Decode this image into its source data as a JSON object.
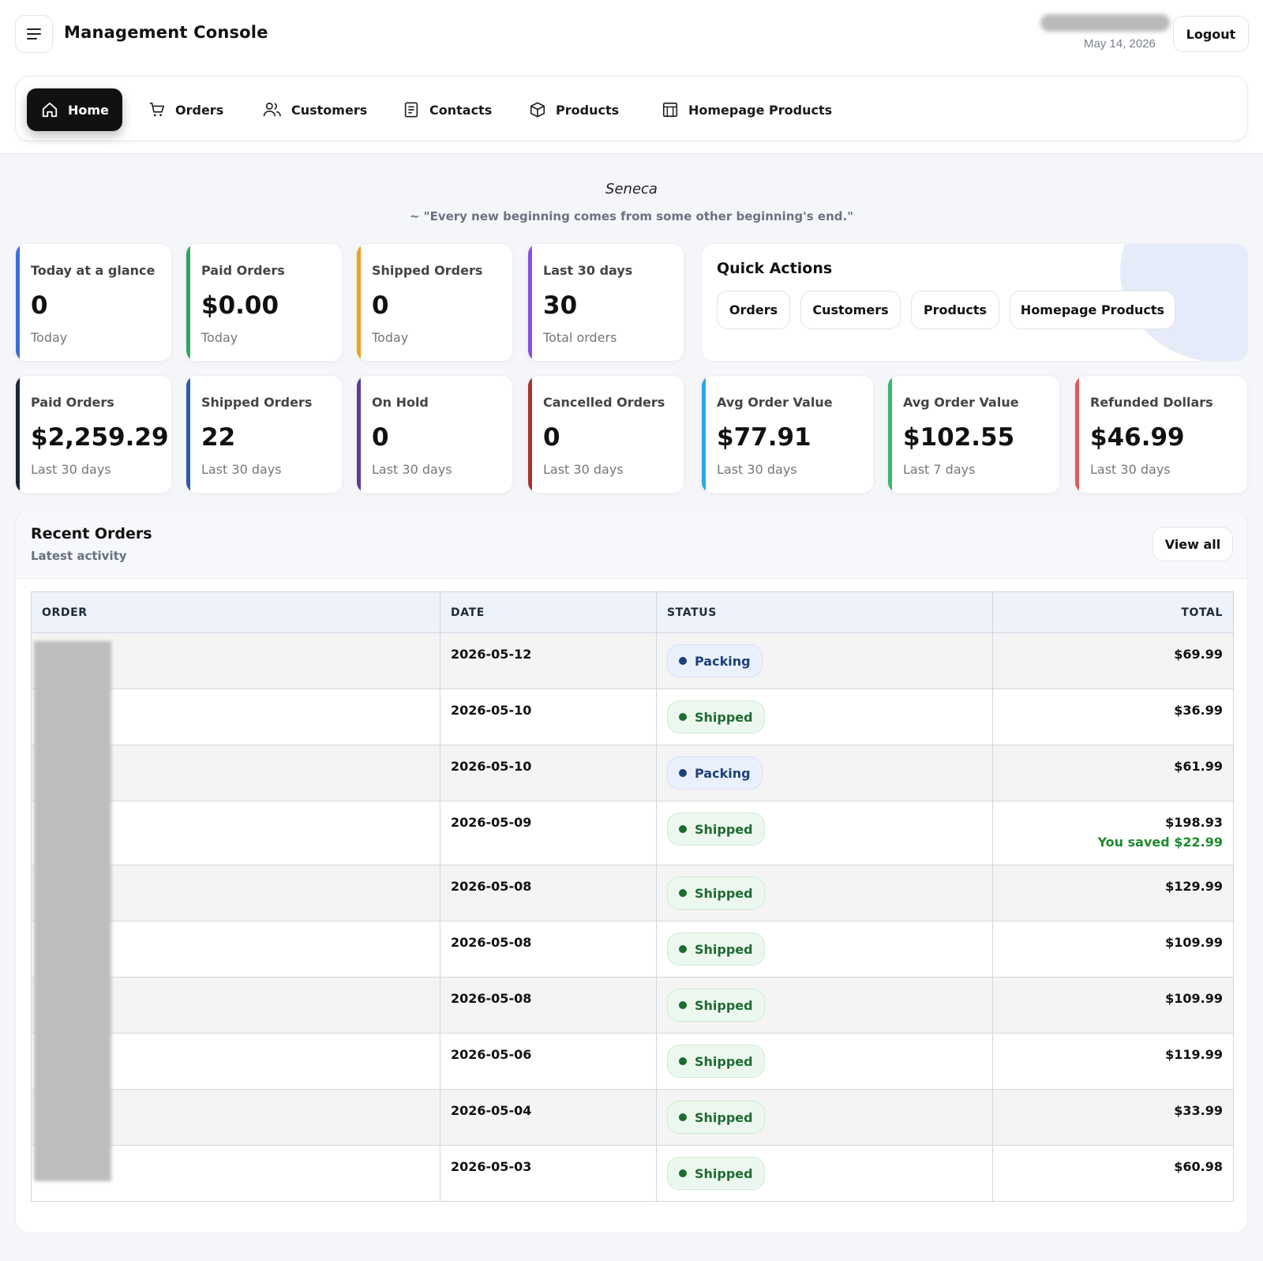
{
  "header": {
    "title": "Management Console",
    "date": "May 14, 2026",
    "logout_label": "Logout"
  },
  "nav": {
    "items": [
      {
        "label": "Home",
        "icon": "home-icon",
        "active": true
      },
      {
        "label": "Orders",
        "icon": "cart-icon"
      },
      {
        "label": "Customers",
        "icon": "users-icon"
      },
      {
        "label": "Contacts",
        "icon": "contacts-icon"
      },
      {
        "label": "Products",
        "icon": "box-icon"
      },
      {
        "label": "Homepage Products",
        "icon": "storefront-icon"
      }
    ]
  },
  "quote": {
    "author": "Seneca",
    "text": "~ \"Every new beginning comes from some other beginning's end.\""
  },
  "top_stats": [
    {
      "label": "Today at a glance",
      "value": "0",
      "sub": "Today",
      "accent": "#3b6fd8"
    },
    {
      "label": "Paid Orders",
      "value": "$0.00",
      "sub": "Today",
      "accent": "#2fa65a"
    },
    {
      "label": "Shipped Orders",
      "value": "0",
      "sub": "Today",
      "accent": "#f0a020"
    },
    {
      "label": "Last 30 days",
      "value": "30",
      "sub": "Total orders",
      "accent": "#8a4fe0"
    }
  ],
  "quick_actions": {
    "title": "Quick Actions",
    "buttons": [
      "Orders",
      "Customers",
      "Products",
      "Homepage Products"
    ]
  },
  "stats": [
    {
      "label": "Paid Orders",
      "value": "$2,259.29",
      "sub": "Last 30 days",
      "accent": "#1e2633"
    },
    {
      "label": "Shipped Orders",
      "value": "22",
      "sub": "Last 30 days",
      "accent": "#2b5caa"
    },
    {
      "label": "On Hold",
      "value": "0",
      "sub": "Last 30 days",
      "accent": "#5b3aa0"
    },
    {
      "label": "Cancelled Orders",
      "value": "0",
      "sub": "Last 30 days",
      "accent": "#a8322e"
    },
    {
      "label": "Avg Order Value",
      "value": "$77.91",
      "sub": "Last 30 days",
      "accent": "#2aa8e6"
    },
    {
      "label": "Avg Order Value",
      "value": "$102.55",
      "sub": "Last 7 days",
      "accent": "#36b86a"
    },
    {
      "label": "Refunded Dollars",
      "value": "$46.99",
      "sub": "Last 30 days",
      "accent": "#e05a5a"
    }
  ],
  "recent_orders": {
    "title": "Recent Orders",
    "subtitle": "Latest activity",
    "view_all_label": "View all",
    "columns": [
      "ORDER",
      "DATE",
      "STATUS",
      "TOTAL"
    ],
    "rows": [
      {
        "date": "2026-05-12",
        "status": "Packing",
        "total": "$69.99"
      },
      {
        "date": "2026-05-10",
        "status": "Shipped",
        "total": "$36.99"
      },
      {
        "date": "2026-05-10",
        "status": "Packing",
        "total": "$61.99"
      },
      {
        "date": "2026-05-09",
        "status": "Shipped",
        "total": "$198.93",
        "saved": "You saved $22.99"
      },
      {
        "date": "2026-05-08",
        "status": "Shipped",
        "total": "$129.99"
      },
      {
        "date": "2026-05-08",
        "status": "Shipped",
        "total": "$109.99"
      },
      {
        "date": "2026-05-08",
        "status": "Shipped",
        "total": "$109.99"
      },
      {
        "date": "2026-05-06",
        "status": "Shipped",
        "total": "$119.99"
      },
      {
        "date": "2026-05-04",
        "status": "Shipped",
        "total": "$33.99"
      },
      {
        "date": "2026-05-03",
        "status": "Shipped",
        "total": "$60.98"
      }
    ]
  }
}
